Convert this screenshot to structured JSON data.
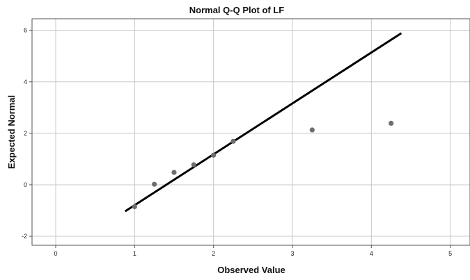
{
  "chart_data": {
    "type": "scatter",
    "title": "Normal Q-Q Plot of LF",
    "xlabel": "Observed Value",
    "ylabel": "Expected Normal",
    "xlim": [
      -0.3,
      5.25
    ],
    "ylim": [
      -2.35,
      6.45
    ],
    "x_ticks": [
      0,
      1,
      2,
      3,
      4,
      5
    ],
    "y_ticks": [
      -2,
      0,
      2,
      4,
      6
    ],
    "x_tick_labels": [
      "0",
      "1",
      "2",
      "3",
      "4",
      "5"
    ],
    "y_tick_labels": [
      "-2",
      "0",
      "2",
      "4",
      "6"
    ],
    "grid": true,
    "points": [
      {
        "x": 1.0,
        "y": -0.85
      },
      {
        "x": 1.25,
        "y": 0.02
      },
      {
        "x": 1.5,
        "y": 0.48
      },
      {
        "x": 1.75,
        "y": 0.78
      },
      {
        "x": 2.0,
        "y": 1.15
      },
      {
        "x": 2.25,
        "y": 1.69
      },
      {
        "x": 3.25,
        "y": 2.13
      },
      {
        "x": 4.25,
        "y": 2.39
      }
    ],
    "reference_line": {
      "x": [
        0.88,
        4.38
      ],
      "y": [
        -1.03,
        5.89
      ]
    },
    "point_color": "#6e6e6e",
    "line_color": "#000000"
  }
}
